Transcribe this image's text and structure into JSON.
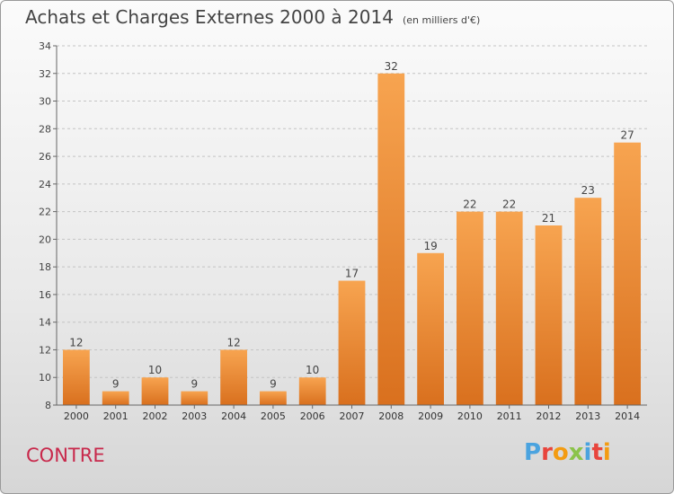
{
  "title": "Achats et Charges Externes 2000 à 2014",
  "subtitle": "(en milliers d'€)",
  "commune": "CONTRE",
  "logo": {
    "text": "Proxiti",
    "colors": [
      "#4aa3df",
      "#e8453c",
      "#f39c12",
      "#8bc34a",
      "#4aa3df",
      "#e8453c",
      "#f39c12"
    ]
  },
  "chart_data": {
    "type": "bar",
    "categories": [
      "2000",
      "2001",
      "2002",
      "2003",
      "2004",
      "2005",
      "2006",
      "2007",
      "2008",
      "2009",
      "2010",
      "2011",
      "2012",
      "2013",
      "2014"
    ],
    "values": [
      12,
      9,
      10,
      9,
      12,
      9,
      10,
      17,
      32,
      19,
      22,
      22,
      21,
      23,
      27
    ],
    "ylim": [
      8,
      34
    ],
    "yticks": [
      8,
      10,
      12,
      14,
      16,
      18,
      20,
      22,
      24,
      26,
      28,
      30,
      32,
      34
    ],
    "grid": "horizontal-dashed",
    "bar_color": "#f0923a"
  }
}
